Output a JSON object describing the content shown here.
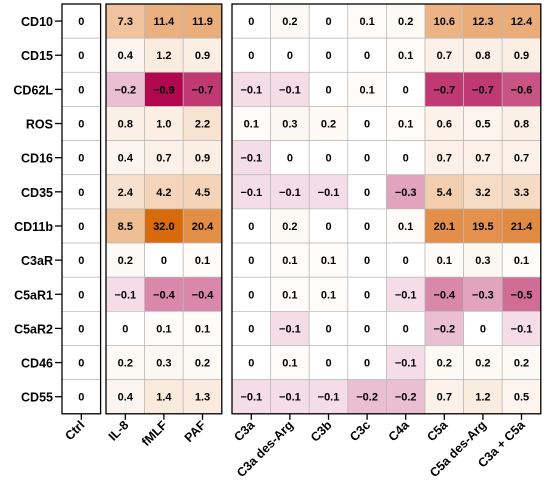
{
  "chart_data": {
    "type": "heatmap",
    "rows": [
      "CD10",
      "CD15",
      "CD62L",
      "ROS",
      "CD16",
      "CD35",
      "CD11b",
      "C3aR",
      "C5aR1",
      "C5aR2",
      "CD46",
      "CD55"
    ],
    "columns": [
      "Ctrl",
      "IL-8",
      "fMLF",
      "PAF",
      "C3a",
      "C3a des-Arg",
      "C3b",
      "C3c",
      "C4a",
      "C5a",
      "C5a des-Arg",
      "C3a + C5a"
    ],
    "column_groups": [
      [
        0
      ],
      [
        1,
        2,
        3
      ],
      [
        4,
        5,
        6,
        7,
        8,
        9,
        10,
        11
      ]
    ],
    "values": [
      [
        "0",
        "7.3",
        "11.4",
        "11.9",
        "0",
        "0.2",
        "0",
        "0.1",
        "0.2",
        "10.6",
        "12.3",
        "12.4"
      ],
      [
        "0",
        "0.4",
        "1.2",
        "0.9",
        "0",
        "0",
        "0",
        "0",
        "0.1",
        "0.7",
        "0.8",
        "0.9"
      ],
      [
        "0",
        "−0.2",
        "−0.9",
        "−0.7",
        "−0.1",
        "−0.1",
        "0",
        "0.1",
        "0",
        "−0.7",
        "−0.7",
        "−0.6"
      ],
      [
        "0",
        "0.8",
        "1.0",
        "2.2",
        "0.1",
        "0.3",
        "0.2",
        "0",
        "0.1",
        "0.6",
        "0.5",
        "0.8"
      ],
      [
        "0",
        "0.4",
        "0.7",
        "0.9",
        "−0.1",
        "0",
        "0",
        "0",
        "0",
        "0.7",
        "0.7",
        "0.7"
      ],
      [
        "0",
        "2.4",
        "4.2",
        "4.5",
        "−0.1",
        "−0.1",
        "−0.1",
        "0",
        "−0.3",
        "5.4",
        "3.2",
        "3.3"
      ],
      [
        "0",
        "8.5",
        "32.0",
        "20.4",
        "0",
        "0.2",
        "0",
        "0",
        "0.1",
        "20.1",
        "19.5",
        "21.4"
      ],
      [
        "0",
        "0.2",
        "0",
        "0.1",
        "0",
        "0.1",
        "0.1",
        "0",
        "0",
        "0.1",
        "0.3",
        "0.1"
      ],
      [
        "0",
        "−0.1",
        "−0.4",
        "−0.4",
        "0",
        "0.1",
        "0.1",
        "0",
        "−0.1",
        "−0.4",
        "−0.3",
        "−0.5"
      ],
      [
        "0",
        "0",
        "0.1",
        "0.1",
        "0",
        "−0.1",
        "0",
        "0",
        "0",
        "−0.2",
        "0",
        "−0.1"
      ],
      [
        "0",
        "0.2",
        "0.3",
        "0.2",
        "0",
        "0.1",
        "0",
        "0",
        "−0.1",
        "0.2",
        "0.2",
        "0.2"
      ],
      [
        "0",
        "0.4",
        "1.4",
        "1.3",
        "−0.1",
        "−0.1",
        "−0.1",
        "−0.2",
        "−0.2",
        "0.7",
        "1.2",
        "0.5"
      ]
    ],
    "colors": {
      "positive_max": "#d96a0c",
      "negative_max": "#b0074f",
      "zero": "#ffffff",
      "grid": "#b8b8b8",
      "border": "#000000",
      "text": "#000000"
    }
  }
}
